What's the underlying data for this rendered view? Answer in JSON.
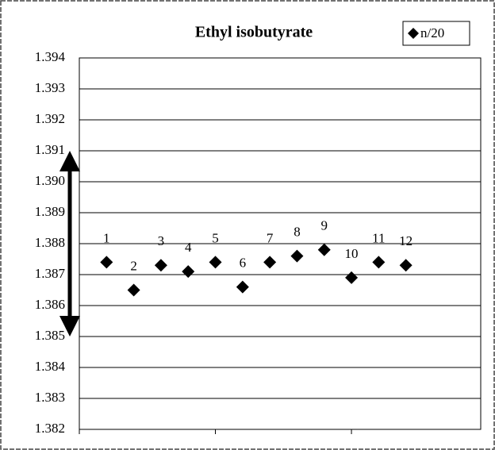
{
  "chart_data": {
    "type": "scatter",
    "title": "Ethyl isobutyrate",
    "series": [
      {
        "name": "n/20",
        "color": "#000000",
        "x": [
          1,
          2,
          3,
          4,
          5,
          6,
          7,
          8,
          9,
          10,
          11,
          12
        ],
        "values": [
          1.3874,
          1.3865,
          1.3873,
          1.3871,
          1.3874,
          1.3866,
          1.3874,
          1.3876,
          1.3878,
          1.3869,
          1.3874,
          1.3873
        ]
      }
    ],
    "xlim": [
      0,
      14.75
    ],
    "xticks": [
      0,
      5,
      10
    ],
    "ylim": [
      1.382,
      1.394
    ],
    "yticks": [
      1.382,
      1.383,
      1.384,
      1.385,
      1.386,
      1.387,
      1.388,
      1.389,
      {
        "value": 1.39,
        "label": "1.390"
      },
      1.391,
      1.392,
      1.393,
      1.394
    ],
    "grid": true,
    "legend": "top-right",
    "annotation_range": {
      "from": 1.385,
      "to": 1.391
    }
  }
}
